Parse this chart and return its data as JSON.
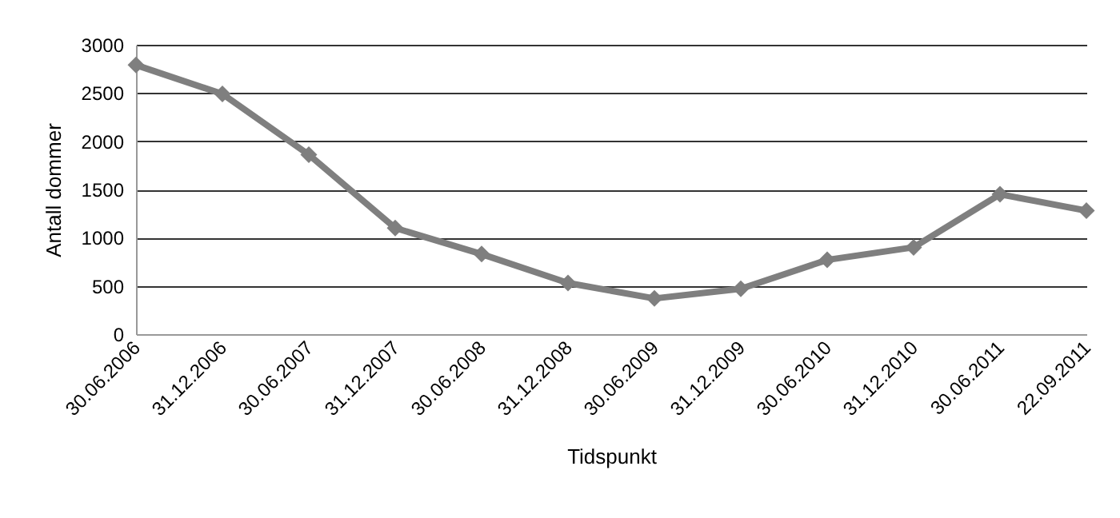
{
  "chart_data": {
    "type": "line",
    "xlabel": "Tidspunkt",
    "ylabel": "Antall dommer",
    "categories": [
      "30.06.2006",
      "31.12.2006",
      "30.06.2007",
      "31.12.2007",
      "30.06.2008",
      "31.12.2008",
      "30.06.2009",
      "31.12.2009",
      "30.06.2010",
      "31.12.2010",
      "30.06.2011",
      "22.09.2011"
    ],
    "series": [
      {
        "color": "#7f7f7f",
        "values": [
          2790,
          2490,
          1860,
          1100,
          830,
          530,
          370,
          470,
          770,
          900,
          1450,
          1280
        ]
      }
    ],
    "ylim": [
      0,
      3000
    ],
    "yticks": [
      0,
      500,
      1000,
      1500,
      2000,
      2500,
      3000
    ],
    "grid": "y",
    "marker": "diamond",
    "line_style": "solid"
  }
}
